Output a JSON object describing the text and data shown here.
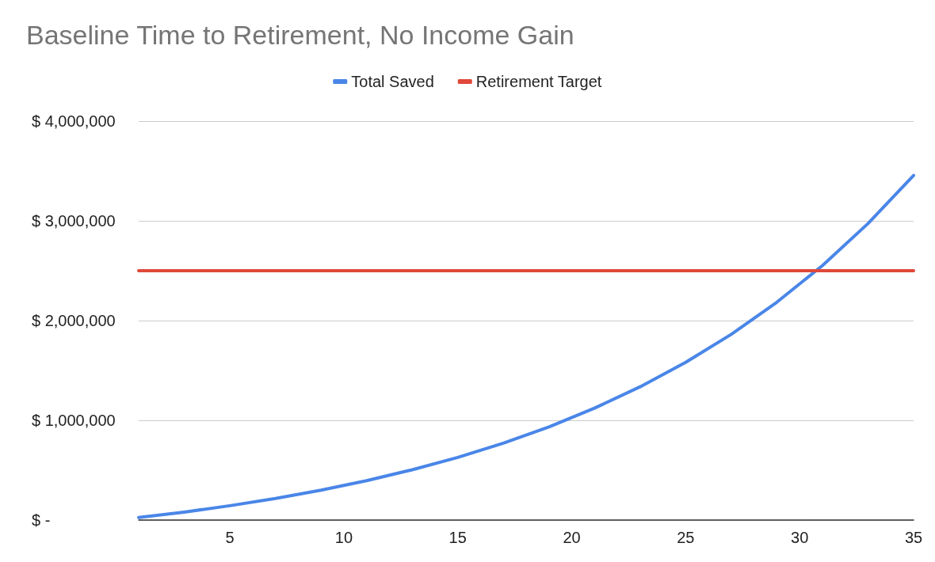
{
  "chart_data": {
    "type": "line",
    "title": "Baseline Time to Retirement, No Income Gain",
    "series": [
      {
        "name": "Total Saved",
        "color": "#4a86e8",
        "x": [
          1,
          3,
          5,
          7,
          9,
          11,
          13,
          15,
          17,
          19,
          21,
          23,
          25,
          27,
          29,
          31,
          33,
          35
        ],
        "values": [
          25000,
          80000,
          144000,
          216000,
          299000,
          395000,
          504000,
          628000,
          771000,
          934000,
          1122000,
          1336000,
          1581000,
          1862000,
          2184000,
          2552000,
          2973000,
          3456000
        ]
      },
      {
        "name": "Retirement Target",
        "color": "#e0483a",
        "x": [
          1,
          35
        ],
        "values": [
          2500000,
          2500000
        ]
      }
    ],
    "xlim": [
      1,
      35
    ],
    "xticks": [
      5,
      10,
      15,
      20,
      25,
      30,
      35
    ],
    "ylim": [
      0,
      4000000
    ],
    "yticks": [
      {
        "value": 0,
        "label": "$ -"
      },
      {
        "value": 1000000,
        "label": "$ 1,000,000"
      },
      {
        "value": 2000000,
        "label": "$ 2,000,000"
      },
      {
        "value": 3000000,
        "label": "$ 3,000,000"
      },
      {
        "value": 4000000,
        "label": "$ 4,000,000"
      }
    ],
    "grid": "y",
    "legend": "top",
    "marker": "none",
    "line_style": "solid"
  }
}
